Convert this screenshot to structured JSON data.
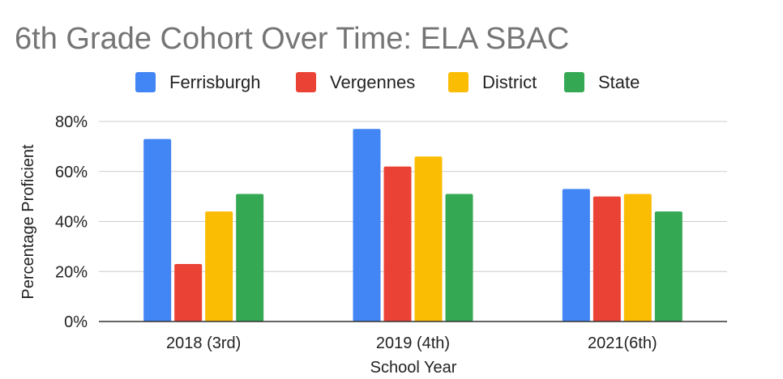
{
  "chart_data": {
    "type": "bar",
    "title": "6th Grade Cohort Over Time: ELA SBAC",
    "xlabel": "School Year",
    "ylabel": "Percentage Proficient",
    "categories": [
      "2018 (3rd)",
      "2019 (4th)",
      "2021(6th)"
    ],
    "series": [
      {
        "name": "Ferrisburgh",
        "color": "#4285F4",
        "values": [
          73,
          77,
          53
        ]
      },
      {
        "name": "Vergennes",
        "color": "#EA4335",
        "values": [
          23,
          62,
          50
        ]
      },
      {
        "name": "District",
        "color": "#FBBC04",
        "values": [
          44,
          66,
          51
        ]
      },
      {
        "name": "State",
        "color": "#34A853",
        "values": [
          51,
          51,
          44
        ]
      }
    ],
    "ylim": [
      0,
      80
    ],
    "yticks": [
      0,
      20,
      40,
      60,
      80
    ],
    "ytick_labels": [
      "0%",
      "20%",
      "40%",
      "60%",
      "80%"
    ],
    "grid": true,
    "legend_position": "top"
  }
}
